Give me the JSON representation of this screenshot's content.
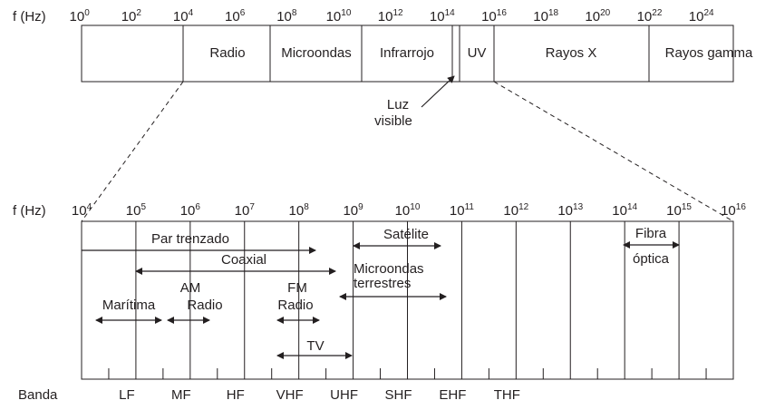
{
  "top_axis": {
    "label": "f (Hz)",
    "base": "10",
    "exponents": [
      "0",
      "2",
      "4",
      "6",
      "8",
      "10",
      "12",
      "14",
      "16",
      "18",
      "20",
      "22",
      "24"
    ]
  },
  "spectrum_bands": [
    "Radio",
    "Microondas",
    "Infrarrojo",
    "UV",
    "Rayos X",
    "Rayos gamma"
  ],
  "visible_label": {
    "line1": "Luz",
    "line2": "visible"
  },
  "bottom_axis": {
    "label": "f (Hz)",
    "base": "10",
    "exponents": [
      "4",
      "5",
      "6",
      "7",
      "8",
      "9",
      "10",
      "11",
      "12",
      "13",
      "14",
      "15",
      "16"
    ]
  },
  "media": {
    "twisted_pair": "Par trenzado",
    "coax": "Coaxial",
    "satellite": "Satélite",
    "terrestrial_line1": "Microondas",
    "terrestrial_line2": "terrestres",
    "fiber_line1": "Fibra",
    "fiber_line2": "óptica",
    "maritime": "Marítima",
    "am_line1": "AM",
    "am_line2": "Radio",
    "fm_line1": "FM",
    "fm_line2": "Radio",
    "tv": "TV"
  },
  "bands": {
    "label": "Banda",
    "names": [
      "LF",
      "MF",
      "HF",
      "VHF",
      "UHF",
      "SHF",
      "EHF",
      "THF"
    ]
  }
}
